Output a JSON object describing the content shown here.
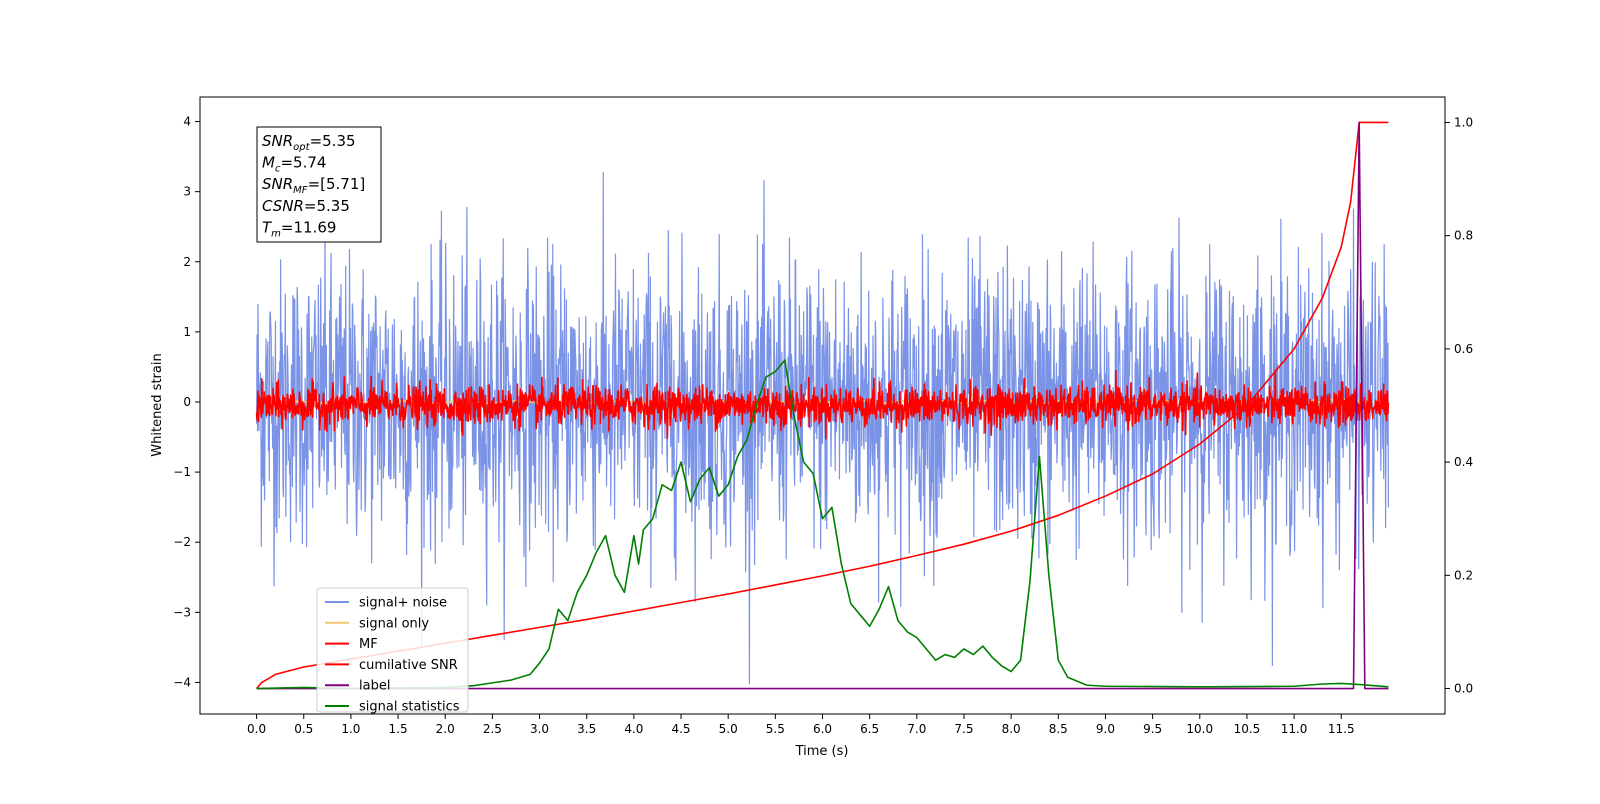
{
  "chart_data": {
    "type": "line",
    "title": "",
    "xlabel": "Time (s)",
    "ylabel": "Whitened strain",
    "xlim": [
      -0.6,
      12.6
    ],
    "ylim": [
      -4.45,
      4.35
    ],
    "y2lim": [
      -0.045,
      1.045
    ],
    "xticks": [
      "0.0",
      "0.5",
      "1.0",
      "1.5",
      "2.0",
      "2.5",
      "3.0",
      "3.5",
      "4.0",
      "4.5",
      "5.0",
      "5.5",
      "6.0",
      "6.5",
      "7.0",
      "7.5",
      "8.0",
      "8.5",
      "9.0",
      "9.5",
      "10.0",
      "10.5",
      "11.0",
      "11.5"
    ],
    "yticks": [
      "−4",
      "−3",
      "−2",
      "−1",
      "0",
      "1",
      "2",
      "3",
      "4"
    ],
    "y2ticks": [
      "0.0",
      "0.2",
      "0.4",
      "0.6",
      "0.8",
      "1.0"
    ],
    "grid": false,
    "legend_position": "lower-left",
    "annotation_lines": [
      {
        "name": "SNR",
        "sub": "opt",
        "value": "=5.35"
      },
      {
        "name": "M",
        "sub": "c",
        "value": "=5.74"
      },
      {
        "name": "SNR",
        "sub": "MF",
        "value": "=[5.71]"
      },
      {
        "name": "CSNR",
        "sub": "",
        "value": "=5.35"
      },
      {
        "name": "T",
        "sub": "m",
        "value": "=11.69"
      }
    ],
    "series": [
      {
        "name": "signal+ noise",
        "color": "#7a93e6",
        "axis": "left",
        "kind": "noise",
        "mean": 0.0,
        "sigma": 1.0,
        "duration": 12.0
      },
      {
        "name": "signal only",
        "color": "#f5c66e",
        "axis": "left",
        "kind": "chirp",
        "merger_time": 11.69
      },
      {
        "name": "MF",
        "color": "#ff0000",
        "axis": "left",
        "kind": "noise",
        "mean": -0.05,
        "sigma": 0.14,
        "duration": 12.0
      },
      {
        "name": "cumilative SNR",
        "color": "#ff0000",
        "axis": "right",
        "x": [
          0.0,
          0.05,
          0.2,
          0.5,
          1.0,
          1.5,
          2.0,
          2.5,
          3.0,
          3.5,
          4.0,
          4.5,
          5.0,
          5.5,
          6.0,
          6.5,
          7.0,
          7.5,
          8.0,
          8.5,
          9.0,
          9.5,
          10.0,
          10.5,
          11.0,
          11.3,
          11.5,
          11.6,
          11.69,
          12.0
        ],
        "values": [
          0.0,
          0.01,
          0.025,
          0.038,
          0.052,
          0.066,
          0.08,
          0.094,
          0.108,
          0.122,
          0.137,
          0.152,
          0.167,
          0.183,
          0.199,
          0.216,
          0.235,
          0.255,
          0.278,
          0.306,
          0.34,
          0.379,
          0.432,
          0.5,
          0.6,
          0.69,
          0.78,
          0.86,
          1.0,
          1.0
        ]
      },
      {
        "name": "label",
        "color": "#800080",
        "axis": "right",
        "x": [
          0.0,
          11.63,
          11.69,
          11.75,
          11.81,
          12.0
        ],
        "values": [
          0.0,
          0.0,
          1.0,
          0.0,
          0.0,
          0.0
        ]
      },
      {
        "name": "signal statistics",
        "color": "#008000",
        "axis": "right",
        "x": [
          0.0,
          0.5,
          1.0,
          1.5,
          2.0,
          2.3,
          2.5,
          2.7,
          2.9,
          3.0,
          3.1,
          3.2,
          3.3,
          3.4,
          3.5,
          3.6,
          3.7,
          3.8,
          3.9,
          4.0,
          4.05,
          4.1,
          4.2,
          4.3,
          4.4,
          4.5,
          4.6,
          4.7,
          4.8,
          4.9,
          5.0,
          5.1,
          5.2,
          5.3,
          5.4,
          5.5,
          5.6,
          5.7,
          5.8,
          5.9,
          6.0,
          6.1,
          6.2,
          6.3,
          6.4,
          6.5,
          6.6,
          6.7,
          6.8,
          6.9,
          7.0,
          7.1,
          7.2,
          7.3,
          7.4,
          7.5,
          7.6,
          7.7,
          7.8,
          7.9,
          8.0,
          8.1,
          8.2,
          8.3,
          8.4,
          8.5,
          8.6,
          8.8,
          9.0,
          10.0,
          11.0,
          11.3,
          11.5,
          11.7,
          12.0
        ],
        "values": [
          0.0,
          0.002,
          0.0,
          0.001,
          0.002,
          0.005,
          0.01,
          0.015,
          0.025,
          0.045,
          0.07,
          0.14,
          0.12,
          0.17,
          0.2,
          0.24,
          0.27,
          0.2,
          0.17,
          0.27,
          0.22,
          0.28,
          0.3,
          0.36,
          0.35,
          0.4,
          0.33,
          0.37,
          0.39,
          0.34,
          0.36,
          0.41,
          0.44,
          0.5,
          0.55,
          0.56,
          0.58,
          0.48,
          0.4,
          0.38,
          0.3,
          0.32,
          0.22,
          0.15,
          0.13,
          0.11,
          0.14,
          0.18,
          0.12,
          0.1,
          0.09,
          0.07,
          0.05,
          0.06,
          0.055,
          0.07,
          0.06,
          0.075,
          0.055,
          0.04,
          0.03,
          0.05,
          0.19,
          0.41,
          0.2,
          0.05,
          0.02,
          0.006,
          0.004,
          0.003,
          0.004,
          0.008,
          0.009,
          0.007,
          0.003
        ]
      }
    ]
  }
}
